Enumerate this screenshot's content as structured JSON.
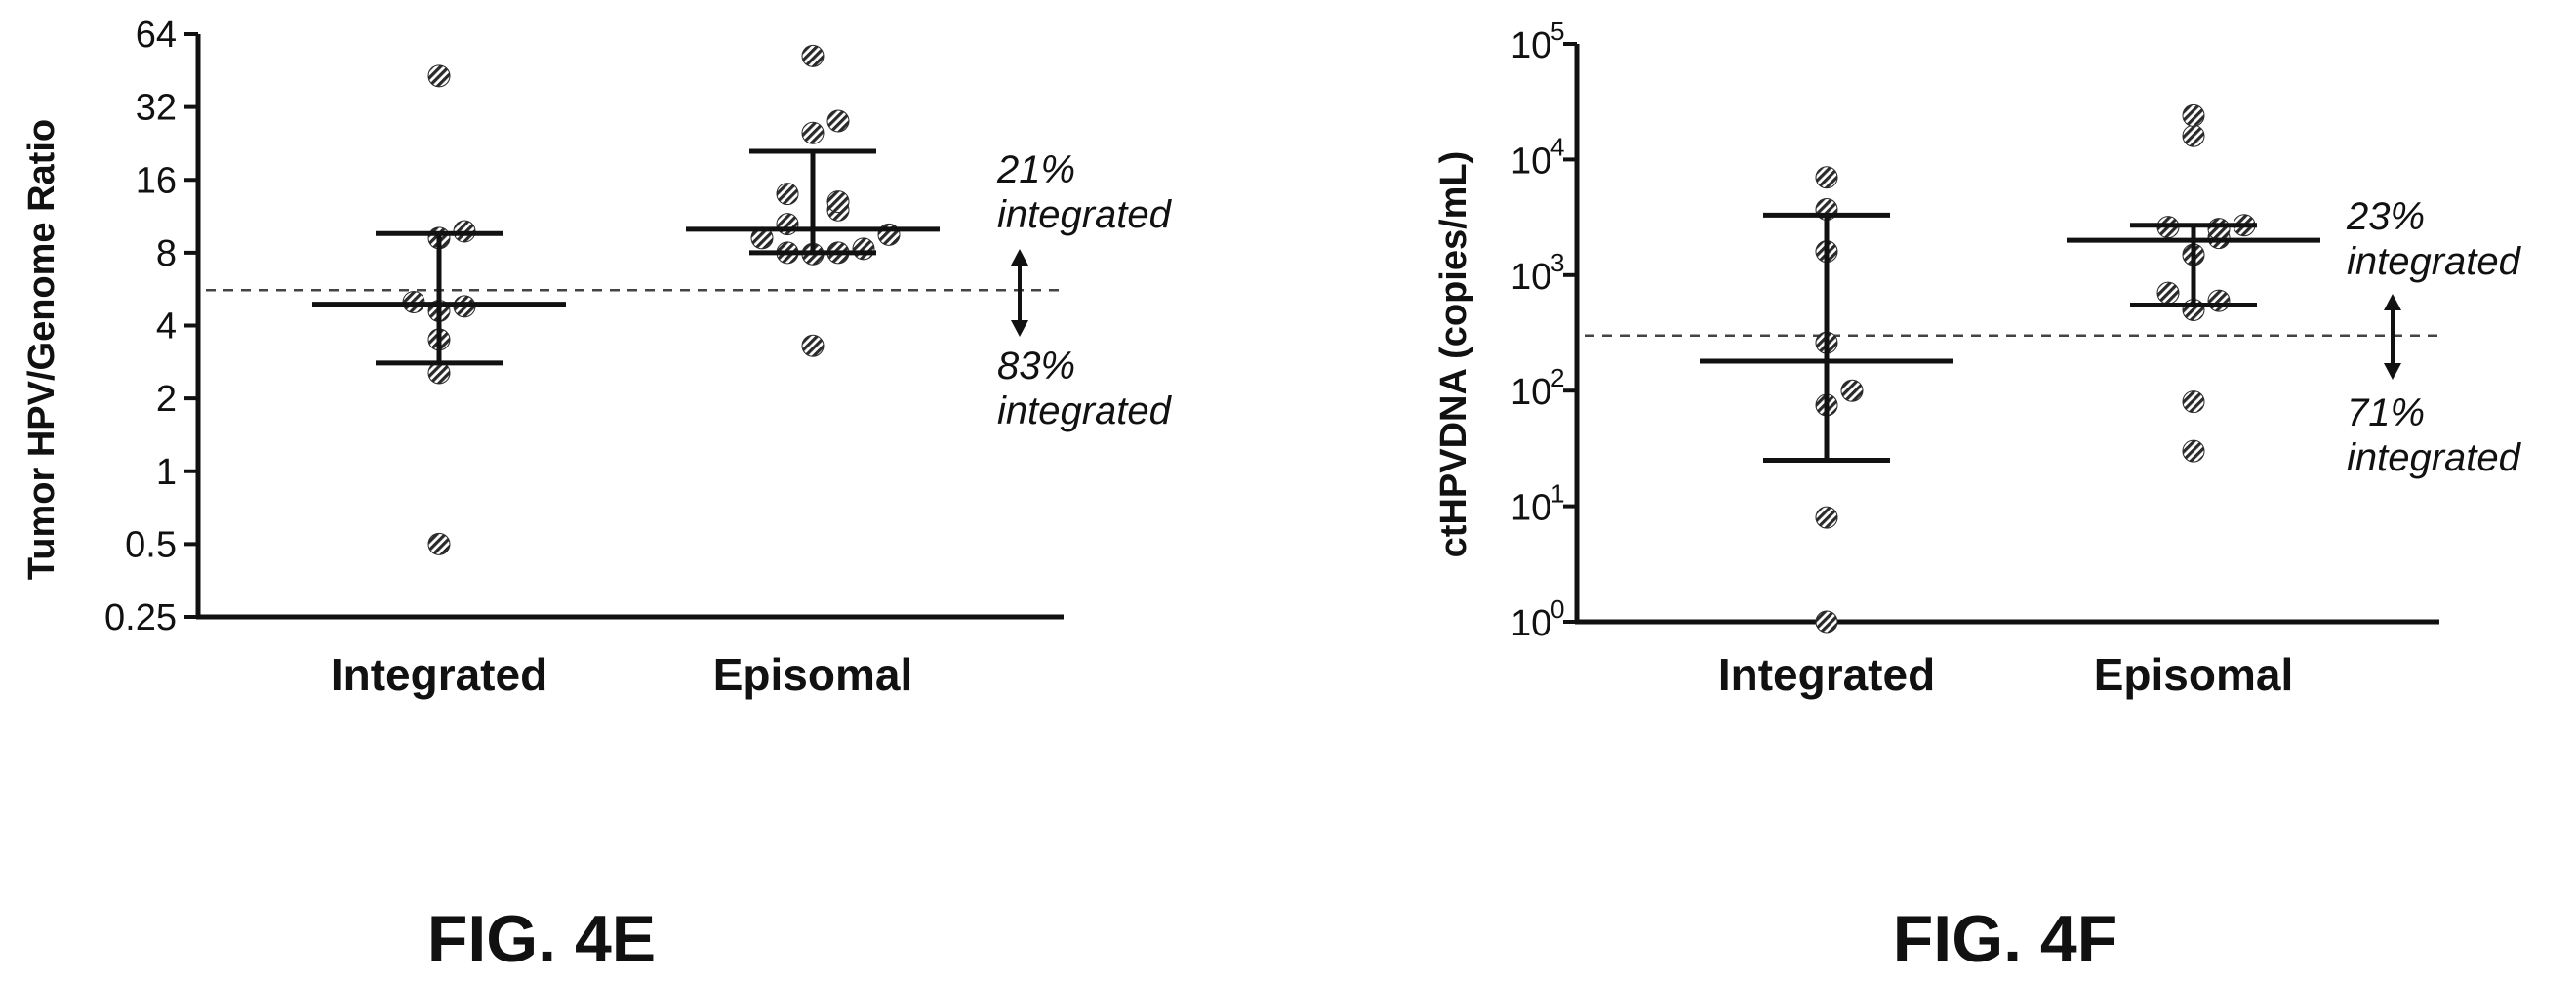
{
  "figures": [
    {
      "caption": "FIG. 4E"
    },
    {
      "caption": "FIG. 4F"
    }
  ],
  "chart_data": [
    {
      "type": "scatter",
      "ylabel": "Tumor HPV/Genome Ratio",
      "xlabel": "",
      "yscale": "log2",
      "ylim": [
        0.25,
        64
      ],
      "yticks": [
        0.25,
        0.5,
        1,
        2,
        4,
        8,
        16,
        32,
        64
      ],
      "ytick_labels": [
        "0.25",
        "0.5",
        "1",
        "2",
        "4",
        "8",
        "16",
        "32",
        "64"
      ],
      "categories": [
        "Integrated",
        "Episomal"
      ],
      "series": [
        {
          "category": "Integrated",
          "values": [
            43,
            9.8,
            9.2,
            5.0,
            4.8,
            4.6,
            3.5,
            2.55,
            0.5
          ],
          "median": 4.9,
          "q1": 2.8,
          "q3": 9.6
        },
        {
          "category": "Episomal",
          "values": [
            52,
            28,
            25,
            14,
            13,
            12,
            10.5,
            9.5,
            9.2,
            8.3,
            8.0,
            8.0,
            7.9,
            3.3
          ],
          "median": 10,
          "q1": 8,
          "q3": 21
        }
      ],
      "threshold": 5.6,
      "annotations": [
        {
          "line1": "21%",
          "line2": "integrated"
        },
        {
          "line1": "83%",
          "line2": "integrated"
        }
      ],
      "grid": false,
      "legend": "none"
    },
    {
      "type": "scatter",
      "ylabel": "ctHPVDNA (copies/mL)",
      "xlabel": "",
      "yscale": "log10",
      "ylim": [
        1,
        100000
      ],
      "yticks": [
        1,
        10,
        100,
        1000,
        10000,
        100000
      ],
      "ytick_labels": [
        {
          "base": "10",
          "exp": "0"
        },
        {
          "base": "10",
          "exp": "1"
        },
        {
          "base": "10",
          "exp": "2"
        },
        {
          "base": "10",
          "exp": "3"
        },
        {
          "base": "10",
          "exp": "4"
        },
        {
          "base": "10",
          "exp": "5"
        }
      ],
      "categories": [
        "Integrated",
        "Episomal"
      ],
      "series": [
        {
          "category": "Integrated",
          "values": [
            7000,
            3700,
            1600,
            260,
            100,
            75,
            8,
            1
          ],
          "median": 180,
          "q1": 25,
          "q3": 3300
        },
        {
          "category": "Episomal",
          "values": [
            24000,
            16000,
            2700,
            2600,
            2500,
            2100,
            1500,
            700,
            600,
            500,
            80,
            30
          ],
          "median": 2000,
          "q1": 550,
          "q3": 2700
        }
      ],
      "threshold": 300,
      "annotations": [
        {
          "line1": "23%",
          "line2": "integrated"
        },
        {
          "line1": "71%",
          "line2": "integrated"
        }
      ],
      "grid": false,
      "legend": "none"
    }
  ]
}
